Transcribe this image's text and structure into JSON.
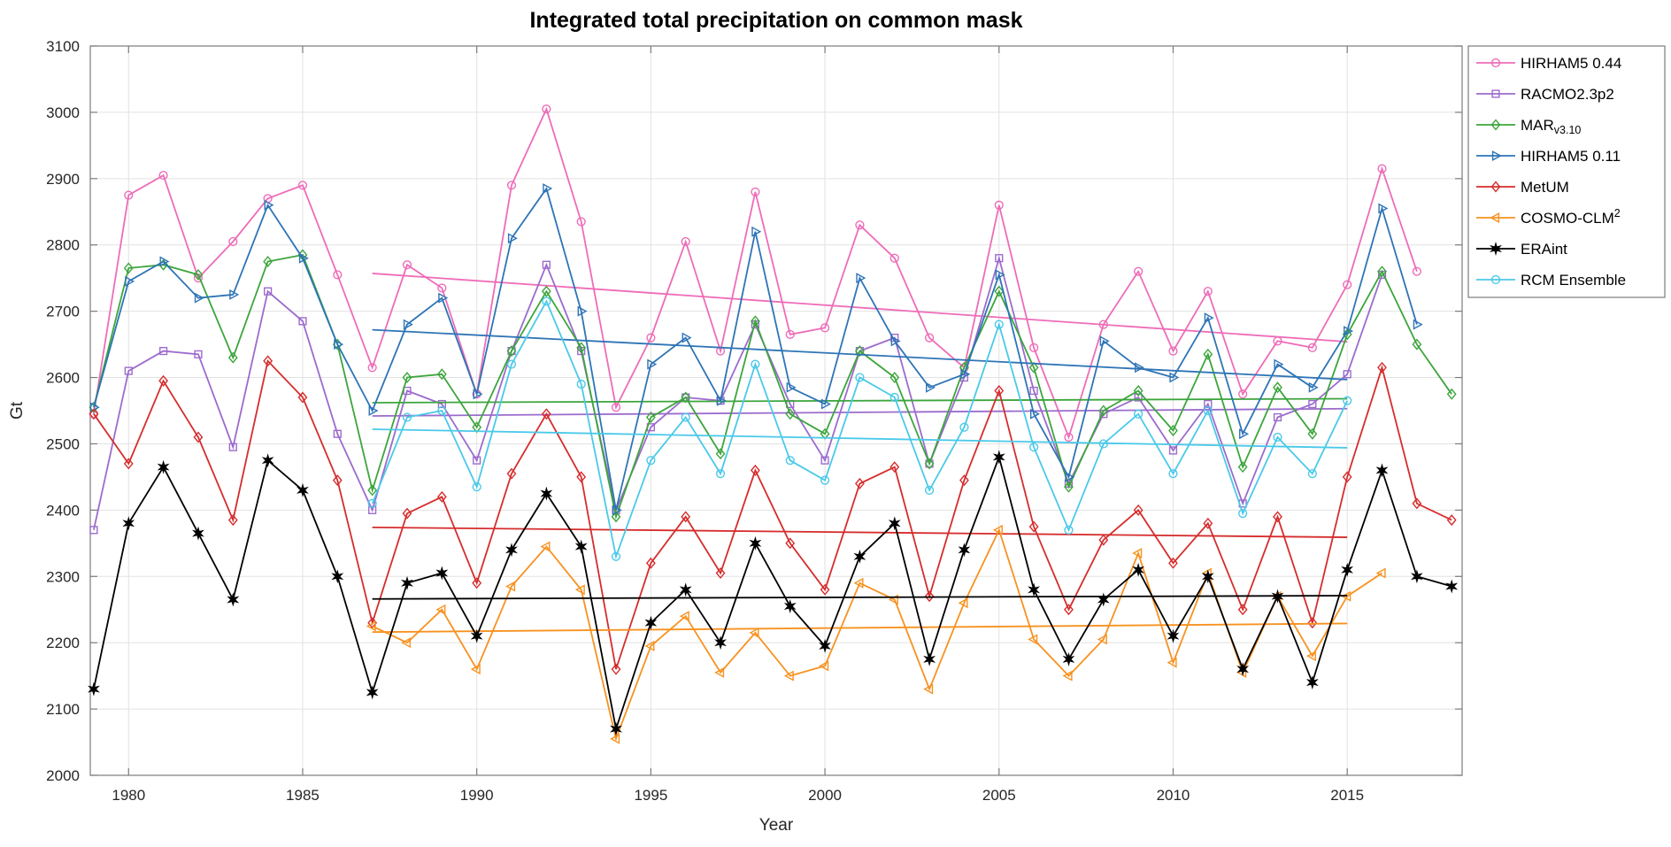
{
  "chart_data": {
    "type": "line",
    "title": "Integrated total precipitation on common mask",
    "xlabel": "Year",
    "ylabel": "Gt",
    "xlim": [
      1978.9,
      2018.3
    ],
    "ylim": [
      2000,
      3100
    ],
    "xticks": [
      1980,
      1985,
      1990,
      1995,
      2000,
      2005,
      2010,
      2015
    ],
    "yticks": [
      2000,
      2100,
      2200,
      2300,
      2400,
      2500,
      2600,
      2700,
      2800,
      2900,
      3000,
      3100
    ],
    "grid": true,
    "legend_position": "top-right-outside",
    "colors": {
      "grid": "#e2e2e2",
      "axis": "#7b7b7b",
      "tick_text": "#262626",
      "title_text": "#000000"
    },
    "series": [
      {
        "name": "HIRHAM5 0.44",
        "label": {
          "main": "HIRHAM5 0.44"
        },
        "color": "#ee6cb8",
        "marker": "circle",
        "x_start": 1979,
        "values": [
          2545,
          2875,
          2905,
          2750,
          2805,
          2870,
          2890,
          2755,
          2615,
          2770,
          2735,
          2575,
          2890,
          3005,
          2835,
          2555,
          2660,
          2805,
          2640,
          2880,
          2665,
          2675,
          2830,
          2780,
          2660,
          2615,
          2860,
          2645,
          2510,
          2680,
          2760,
          2640,
          2730,
          2575,
          2655,
          2645,
          2740,
          2915,
          2760
        ],
        "trend": {
          "x": [
            1987,
            2015
          ],
          "y": [
            2757,
            2654
          ]
        }
      },
      {
        "name": "RACMO2.3p2",
        "label": {
          "main": "RACMO2.3p2"
        },
        "color": "#9c6bcd",
        "marker": "square",
        "x_start": 1979,
        "values": [
          2370,
          2610,
          2640,
          2635,
          2495,
          2730,
          2685,
          2515,
          2400,
          2580,
          2560,
          2475,
          2640,
          2770,
          2640,
          2400,
          2525,
          2570,
          2565,
          2680,
          2560,
          2475,
          2640,
          2660,
          2470,
          2600,
          2780,
          2580,
          2440,
          2545,
          2570,
          2490,
          2560,
          2410,
          2540,
          2560,
          2605,
          2755
        ],
        "trend": {
          "x": [
            1987,
            2015
          ],
          "y": [
            2542,
            2553
          ]
        }
      },
      {
        "name": "MAR v3.10",
        "label": {
          "main": "MAR",
          "sub": "v3.10"
        },
        "color": "#3ca53c",
        "marker": "diamond",
        "x_start": 1979,
        "values": [
          2555,
          2765,
          2770,
          2755,
          2630,
          2775,
          2785,
          2650,
          2430,
          2600,
          2605,
          2525,
          2640,
          2730,
          2645,
          2390,
          2540,
          2570,
          2485,
          2685,
          2545,
          2515,
          2640,
          2600,
          2470,
          2615,
          2730,
          2615,
          2435,
          2550,
          2580,
          2520,
          2635,
          2465,
          2585,
          2515,
          2665,
          2760,
          2650,
          2575
        ],
        "trend": {
          "x": [
            1987,
            2015
          ],
          "y": [
            2562,
            2568
          ]
        }
      },
      {
        "name": "HIRHAM5 0.11",
        "label": {
          "main": "HIRHAM5 0.11"
        },
        "color": "#2e74b6",
        "marker": "triangle-right",
        "x_start": 1979,
        "values": [
          2555,
          2745,
          2775,
          2720,
          2725,
          2860,
          2780,
          2650,
          2550,
          2680,
          2720,
          2575,
          2810,
          2885,
          2700,
          2400,
          2620,
          2660,
          2565,
          2820,
          2585,
          2560,
          2750,
          2655,
          2585,
          2605,
          2755,
          2545,
          2450,
          2655,
          2615,
          2600,
          2690,
          2515,
          2620,
          2585,
          2670,
          2855,
          2680
        ],
        "trend": {
          "x": [
            1987,
            2015
          ],
          "y": [
            2672,
            2597
          ]
        }
      },
      {
        "name": "MetUM",
        "label": {
          "main": "MetUM"
        },
        "color": "#d62c2c",
        "marker": "diamond",
        "x_start": 1979,
        "values": [
          2545,
          2470,
          2595,
          2510,
          2385,
          2625,
          2570,
          2445,
          2230,
          2395,
          2420,
          2290,
          2455,
          2545,
          2450,
          2160,
          2320,
          2390,
          2305,
          2460,
          2350,
          2280,
          2440,
          2465,
          2270,
          2445,
          2580,
          2375,
          2250,
          2355,
          2400,
          2320,
          2380,
          2250,
          2390,
          2230,
          2450,
          2615,
          2410,
          2385
        ],
        "trend": {
          "x": [
            1987,
            2015
          ],
          "y": [
            2374,
            2359
          ]
        }
      },
      {
        "name": "COSMO-CLM2",
        "label": {
          "main": "COSMO-CLM",
          "sup": "2"
        },
        "color": "#f79220",
        "marker": "triangle-left",
        "x_start": 1987,
        "values": [
          2225,
          2200,
          2250,
          2160,
          2285,
          2345,
          2280,
          2055,
          2195,
          2240,
          2155,
          2215,
          2150,
          2165,
          2290,
          2265,
          2130,
          2260,
          2370,
          2205,
          2150,
          2205,
          2335,
          2170,
          2305,
          2155,
          2270,
          2180,
          2270,
          2305
        ],
        "trend": {
          "x": [
            1987,
            2015
          ],
          "y": [
            2216,
            2229
          ]
        }
      },
      {
        "name": "ERAint",
        "label": {
          "main": "ERAint"
        },
        "color": "#000000",
        "marker": "hexagram",
        "x_start": 1979,
        "values": [
          2130,
          2380,
          2465,
          2365,
          2265,
          2475,
          2430,
          2300,
          2125,
          2290,
          2305,
          2210,
          2340,
          2425,
          2345,
          2070,
          2230,
          2280,
          2200,
          2350,
          2255,
          2195,
          2330,
          2380,
          2175,
          2340,
          2480,
          2280,
          2175,
          2265,
          2310,
          2210,
          2300,
          2160,
          2270,
          2140,
          2310,
          2460,
          2300,
          2285
        ],
        "trend": {
          "x": [
            1987,
            2015
          ],
          "y": [
            2266,
            2271
          ]
        }
      },
      {
        "name": "RCM Ensemble",
        "label": {
          "main": "RCM Ensemble"
        },
        "color": "#4ac9e9",
        "marker": "circle",
        "x_start": 1987,
        "values": [
          2410,
          2540,
          2550,
          2435,
          2620,
          2715,
          2590,
          2330,
          2475,
          2540,
          2455,
          2620,
          2475,
          2445,
          2600,
          2570,
          2430,
          2525,
          2680,
          2495,
          2370,
          2500,
          2545,
          2455,
          2550,
          2395,
          2510,
          2455,
          2565
        ],
        "trend": {
          "x": [
            1987,
            2015
          ],
          "y": [
            2522,
            2494
          ]
        }
      }
    ]
  }
}
